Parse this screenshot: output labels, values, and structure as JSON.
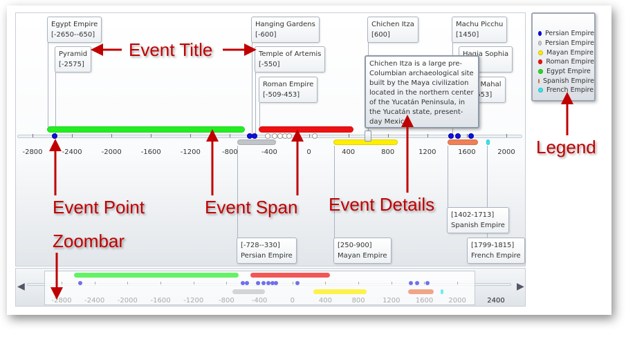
{
  "axis": {
    "main_ticks": [
      -2800,
      -2400,
      -2000,
      -1600,
      -1200,
      -800,
      -400,
      0,
      400,
      800,
      1200,
      1600,
      2000
    ],
    "zoom_ticks": [
      -2800,
      -2400,
      -2000,
      -1600,
      -1200,
      -800,
      -400,
      0,
      400,
      800,
      1200,
      1600,
      2000
    ],
    "zoom_end_label": "2400",
    "slider_value": 600
  },
  "events": [
    {
      "title": "Egypt Empire",
      "range": "[-2650--650]"
    },
    {
      "title": "Pyramid",
      "range": "[-2575]"
    },
    {
      "title": "Hanging Gardens",
      "range": "[-600]"
    },
    {
      "title": "Temple of Artemis",
      "range": "[-550]"
    },
    {
      "title": "Roman Empire",
      "range": "[-509-453]"
    },
    {
      "title": "Chichen Itza",
      "range": "[600]"
    },
    {
      "title": "Machu Picchu",
      "range": "[1450]"
    },
    {
      "title": "Hagia Sophia",
      "range": "[1]"
    },
    {
      "title": "Taj Mahal",
      "range": "[1653]"
    },
    {
      "title": "Persian Empire",
      "range": "[-728--330]"
    },
    {
      "title": "Mayan Empire",
      "range": "[250-900]"
    },
    {
      "title": "Spanish Empire",
      "range": "[1402-1713]"
    },
    {
      "title": "French Empire",
      "range": "[1799-1815]"
    }
  ],
  "spans": [
    {
      "series": "Egypt Empire",
      "start": -2650,
      "end": -650,
      "color": "#22ee22",
      "row": 0
    },
    {
      "series": "Roman Empire",
      "start": -509,
      "end": 453,
      "color": "#ee1111",
      "row": 0
    },
    {
      "series": "Persian Empire",
      "start": -728,
      "end": -330,
      "color": "#c0c4c8",
      "row": 1
    },
    {
      "series": "Mayan Empire",
      "start": 250,
      "end": 900,
      "color": "#ffee00",
      "row": 1
    },
    {
      "series": "Spanish Empire",
      "start": 1402,
      "end": 1713,
      "color": "#ee8055",
      "row": 1
    },
    {
      "series": "French Empire",
      "start": 1799,
      "end": 1815,
      "color": "#33e6ee",
      "row": 1
    }
  ],
  "points": [
    {
      "year": -2575,
      "color": "#1111dd"
    },
    {
      "year": -600,
      "color": "#1111dd"
    },
    {
      "year": -550,
      "color": "#1111dd"
    },
    {
      "year": -420,
      "color": "#ffffff"
    },
    {
      "year": -350,
      "color": "#ffffff"
    },
    {
      "year": -290,
      "color": "#ffffff"
    },
    {
      "year": -240,
      "color": "#ffffff"
    },
    {
      "year": -200,
      "color": "#ffffff"
    },
    {
      "year": 60,
      "color": "#ffffff"
    },
    {
      "year": 1440,
      "color": "#1111dd"
    },
    {
      "year": 1510,
      "color": "#1111dd"
    },
    {
      "year": 1640,
      "color": "#1111dd"
    }
  ],
  "tooltip": {
    "text": "Chichen Itza is a large pre-Columbian archaeological site built by the Maya civilization located in the northern center of the Yucatán Peninsula, in the Yucatán state, present-day Mexico"
  },
  "legend": [
    {
      "label": "Persian Empire",
      "color": "#0000ee"
    },
    {
      "label": "Persian Empire",
      "color": "#c8ccd0"
    },
    {
      "label": "Mayan Empire",
      "color": "#ffee00"
    },
    {
      "label": "Roman Empire",
      "color": "#ee1111"
    },
    {
      "label": "Egypt Empire",
      "color": "#22dd22"
    },
    {
      "label": "Spanish Empire",
      "color": "#ee8055"
    },
    {
      "label": "French Empire",
      "color": "#33e6ee"
    }
  ],
  "annotations": {
    "event_title": "Event Title",
    "event_point": "Event Point",
    "event_span": "Event Span",
    "event_details": "Event Details",
    "zoombar": "Zoombar",
    "legend": "Legend"
  }
}
